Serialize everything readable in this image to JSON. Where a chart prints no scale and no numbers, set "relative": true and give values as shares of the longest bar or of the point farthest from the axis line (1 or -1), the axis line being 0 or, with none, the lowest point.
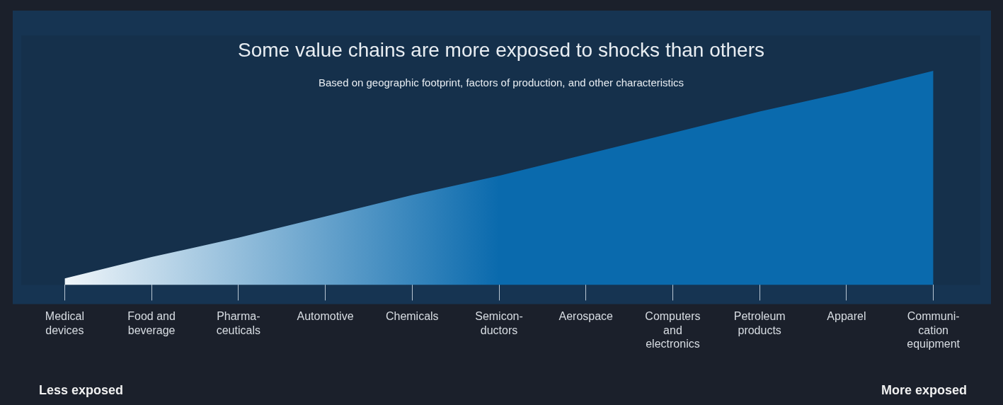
{
  "chart_data": {
    "type": "area",
    "relative": true,
    "title": "Some value chains are more exposed to shocks than others",
    "subtitle": "Based on geographic footprint, factors of production, and other characteristics",
    "categories": [
      "Medical\ndevices",
      "Food and\nbeverage",
      "Pharma-\nceuticals",
      "Automotive",
      "Chemicals",
      "Semicon-\nductors",
      "Aerospace",
      "Computers\nand\nelectronics",
      "Petroleum\nproducts",
      "Apparel",
      "Communi-\ncation\nequipment"
    ],
    "values": [
      0.03,
      0.13,
      0.22,
      0.32,
      0.42,
      0.51,
      0.61,
      0.71,
      0.81,
      0.9,
      1
    ],
    "color": "#0a6aad",
    "annotations": [
      "Less exposed",
      "More exposed"
    ]
  }
}
